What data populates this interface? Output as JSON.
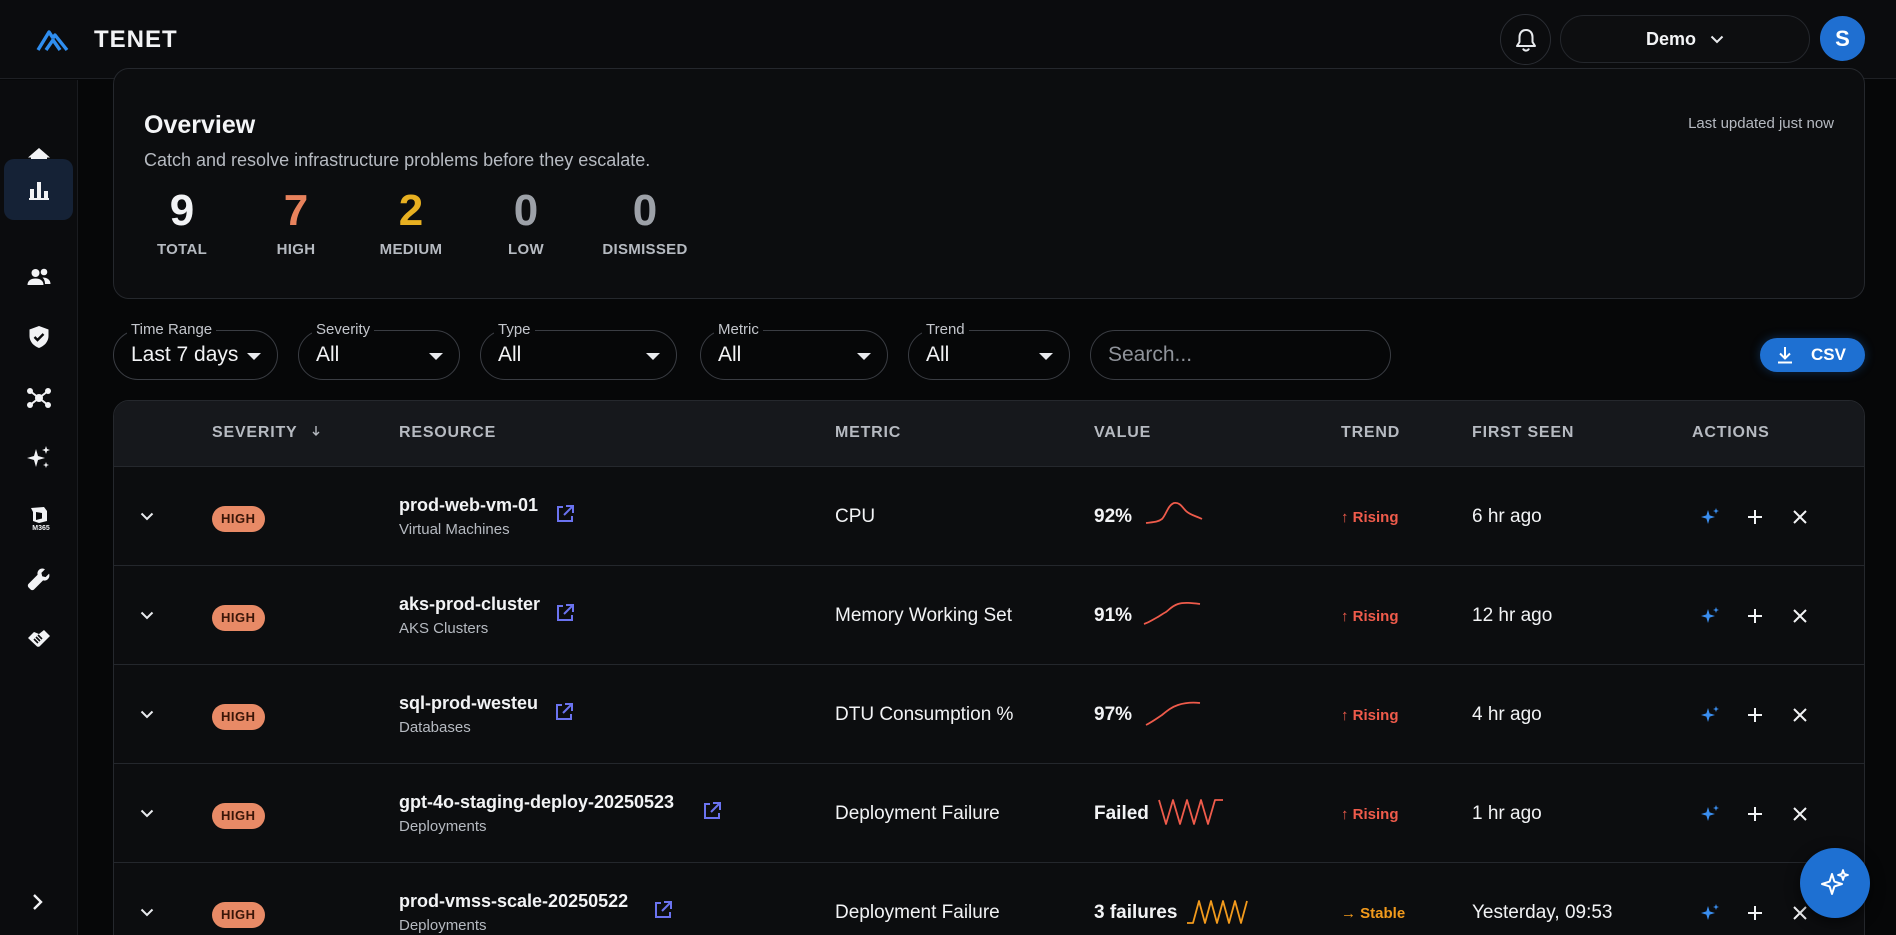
{
  "app": {
    "name": "TENET"
  },
  "header": {
    "org": "Demo",
    "avatar_initial": "S"
  },
  "sidebar": {
    "items": [
      {
        "icon": "home-icon",
        "active": false
      },
      {
        "icon": "bar-chart-icon",
        "active": true
      },
      {
        "icon": "users-icon",
        "active": false
      },
      {
        "icon": "shield-check-icon",
        "active": false
      },
      {
        "icon": "network-icon",
        "active": false
      },
      {
        "icon": "sparkles-icon",
        "active": false
      },
      {
        "icon": "m365-icon",
        "active": false,
        "caption": "M365"
      },
      {
        "icon": "wrench-icon",
        "active": false
      },
      {
        "icon": "handshake-icon",
        "active": false
      }
    ]
  },
  "overview": {
    "title": "Overview",
    "subtitle": "Catch and resolve infrastructure problems before they escalate.",
    "updated": "Last updated just now",
    "stats": [
      {
        "value": "9",
        "label": "TOTAL",
        "color": "#f2f3f5"
      },
      {
        "value": "7",
        "label": "HIGH",
        "color": "#e8825c"
      },
      {
        "value": "2",
        "label": "MEDIUM",
        "color": "#e8b021"
      },
      {
        "value": "0",
        "label": "LOW",
        "color": "#9da1a8"
      },
      {
        "value": "0",
        "label": "DISMISSED",
        "color": "#9da1a8"
      }
    ]
  },
  "filters": [
    {
      "legend": "Time Range",
      "value": "Last 7 days"
    },
    {
      "legend": "Severity",
      "value": "All"
    },
    {
      "legend": "Type",
      "value": "All"
    },
    {
      "legend": "Metric",
      "value": "All"
    },
    {
      "legend": "Trend",
      "value": "All"
    }
  ],
  "search": {
    "placeholder": "Search..."
  },
  "export": {
    "label": "CSV"
  },
  "table": {
    "columns": [
      "SEVERITY",
      "RESOURCE",
      "METRIC",
      "VALUE",
      "TREND",
      "FIRST SEEN",
      "ACTIONS"
    ],
    "rows": [
      {
        "severity": "HIGH",
        "name": "prod-web-vm-01",
        "type": "Virtual Machines",
        "metric": "CPU",
        "value": "92%",
        "trend": "↑ Rising",
        "trend_kind": "rising",
        "seen": "6 hr ago"
      },
      {
        "severity": "HIGH",
        "name": "aks-prod-cluster",
        "type": "AKS Clusters",
        "metric": "Memory Working Set",
        "value": "91%",
        "trend": "↑ Rising",
        "trend_kind": "rising",
        "seen": "12 hr ago"
      },
      {
        "severity": "HIGH",
        "name": "sql-prod-westeu",
        "type": "Databases",
        "metric": "DTU Consumption %",
        "value": "97%",
        "trend": "↑ Rising",
        "trend_kind": "rising",
        "seen": "4 hr ago"
      },
      {
        "severity": "HIGH",
        "name": "gpt-4o-staging-deploy-20250523",
        "type": "Deployments",
        "metric": "Deployment Failure",
        "value": "Failed",
        "trend": "↑ Rising",
        "trend_kind": "rising",
        "seen": "1 hr ago"
      },
      {
        "severity": "HIGH",
        "name": "prod-vmss-scale-20250522",
        "type": "Deployments",
        "metric": "Deployment Failure",
        "value": "3 failures",
        "trend": "→ Stable",
        "trend_kind": "stable",
        "seen": "Yesterday, 09:53"
      }
    ]
  }
}
